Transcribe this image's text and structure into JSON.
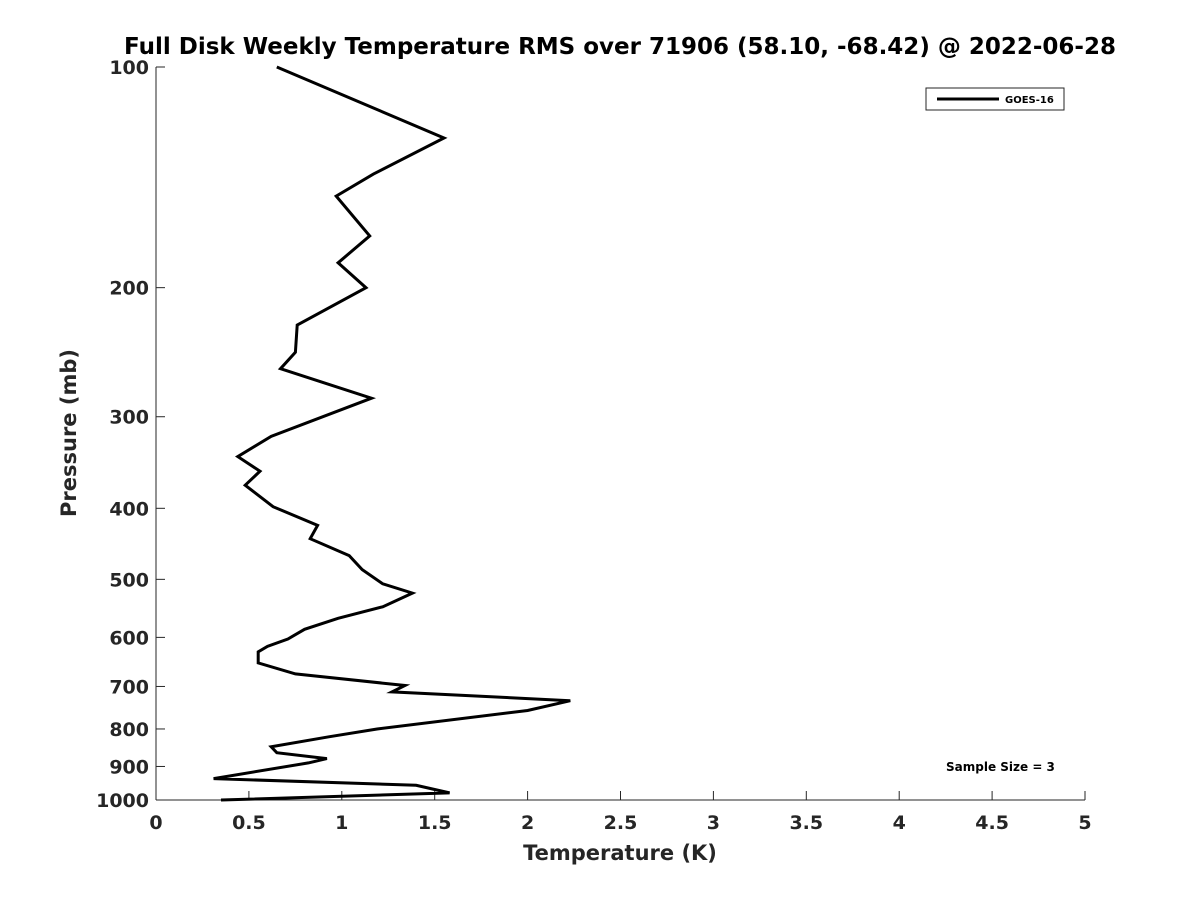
{
  "chart_data": {
    "type": "line",
    "title": "Full Disk Weekly Temperature RMS over 71906 (58.10, -68.42) @ 2022-06-28",
    "xlabel": "Temperature (K)",
    "ylabel": "Pressure (mb)",
    "xlim": [
      0,
      5
    ],
    "ylim": [
      100,
      1000
    ],
    "y_scale": "log",
    "y_reversed": true,
    "grid": false,
    "legend_placement": "top-right",
    "x_ticks": [
      0,
      0.5,
      1,
      1.5,
      2,
      2.5,
      3,
      3.5,
      4,
      4.5,
      5
    ],
    "x_tick_labels": [
      "0",
      "0.5",
      "1",
      "1.5",
      "2",
      "2.5",
      "3",
      "3.5",
      "4",
      "4.5",
      "5"
    ],
    "y_ticks": [
      100,
      200,
      300,
      400,
      500,
      600,
      700,
      800,
      900,
      1000
    ],
    "y_tick_labels": [
      "100",
      "200",
      "300",
      "400",
      "500",
      "600",
      "700",
      "800",
      "900",
      "1000"
    ],
    "series": [
      {
        "name": "GOES-16",
        "color": "#000000",
        "points": [
          [
            0.65,
            100
          ],
          [
            1.55,
            125
          ],
          [
            1.17,
            140
          ],
          [
            0.97,
            150
          ],
          [
            1.15,
            170
          ],
          [
            0.98,
            185
          ],
          [
            1.13,
            200
          ],
          [
            0.76,
            225
          ],
          [
            0.75,
            245
          ],
          [
            0.67,
            258
          ],
          [
            1.16,
            283
          ],
          [
            0.62,
            319
          ],
          [
            0.44,
            340
          ],
          [
            0.56,
            356
          ],
          [
            0.48,
            372
          ],
          [
            0.63,
            398
          ],
          [
            0.87,
            422
          ],
          [
            0.83,
            440
          ],
          [
            1.04,
            464
          ],
          [
            1.11,
            485
          ],
          [
            1.22,
            507
          ],
          [
            1.38,
            522
          ],
          [
            1.22,
            545
          ],
          [
            0.98,
            565
          ],
          [
            0.8,
            585
          ],
          [
            0.71,
            603
          ],
          [
            0.6,
            617
          ],
          [
            0.55,
            628
          ],
          [
            0.55,
            650
          ],
          [
            0.75,
            673
          ],
          [
            1.34,
            698
          ],
          [
            1.27,
            712
          ],
          [
            2.23,
            732
          ],
          [
            2.0,
            755
          ],
          [
            1.19,
            800
          ],
          [
            0.93,
            820
          ],
          [
            0.62,
            846
          ],
          [
            0.65,
            862
          ],
          [
            0.92,
            878
          ],
          [
            0.82,
            890
          ],
          [
            0.31,
            935
          ],
          [
            1.4,
            955
          ],
          [
            1.58,
            978
          ],
          [
            0.35,
            1000
          ]
        ]
      }
    ],
    "annotations": [
      "Sample Size = 3"
    ]
  }
}
